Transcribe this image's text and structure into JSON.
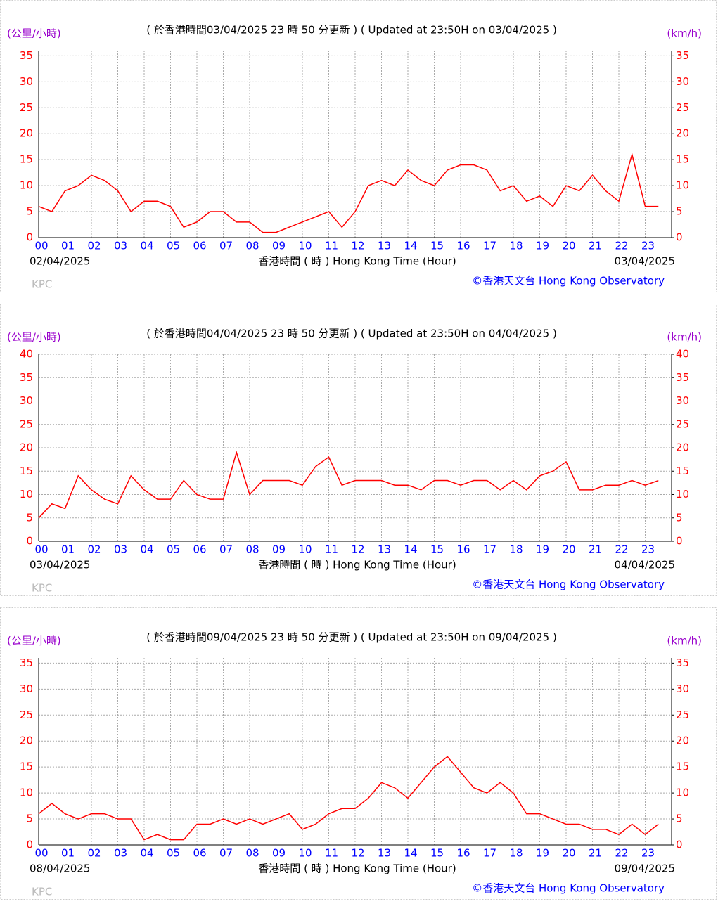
{
  "chart_data": [
    {
      "type": "line",
      "title": "( 於香港時間03/04/2025 23 時 50 分更新 ) ( Updated at 23:50H on 03/04/2025 )",
      "y_label": "(公里/小時)",
      "y2_label": "(km/h)",
      "x_label": "香港時間 ( 時 ) Hong Kong Time (Hour)",
      "start_date": "02/04/2025",
      "end_date": "03/04/2025",
      "footer": "KPC",
      "credit": "©香港天文台 Hong Kong Observatory",
      "grid": true,
      "x": [
        0,
        0.5,
        1,
        1.5,
        2,
        2.5,
        3,
        3.5,
        4,
        4.5,
        5,
        5.5,
        6,
        6.5,
        7,
        7.5,
        8,
        8.5,
        9,
        9.5,
        10,
        10.5,
        11,
        11.5,
        12,
        12.5,
        13,
        13.5,
        14,
        14.5,
        15,
        15.5,
        16,
        16.5,
        17,
        17.5,
        18,
        18.5,
        19,
        19.5,
        20,
        20.5,
        21,
        21.5,
        22,
        22.5,
        23,
        23.5
      ],
      "series": [
        {
          "color": "#ff0000",
          "values": [
            6,
            5,
            9,
            10,
            12,
            11,
            9,
            5,
            7,
            7,
            6,
            2,
            3,
            5,
            5,
            3,
            3,
            1,
            1,
            2,
            3,
            4,
            5,
            2,
            5,
            10,
            11,
            10,
            13,
            11,
            10,
            13,
            14,
            14,
            13,
            9,
            10,
            7,
            8,
            6,
            10,
            9,
            12,
            9,
            7,
            16,
            6,
            6
          ]
        }
      ],
      "xlim": [
        0,
        24
      ],
      "xticks": [
        {
          "value": 0,
          "label": "00"
        },
        {
          "value": 1,
          "label": "01"
        },
        {
          "value": 2,
          "label": "02"
        },
        {
          "value": 3,
          "label": "03"
        },
        {
          "value": 4,
          "label": "04"
        },
        {
          "value": 5,
          "label": "05"
        },
        {
          "value": 6,
          "label": "06"
        },
        {
          "value": 7,
          "label": "07"
        },
        {
          "value": 8,
          "label": "08"
        },
        {
          "value": 9,
          "label": "09"
        },
        10,
        11,
        12,
        13,
        14,
        15,
        16,
        17,
        18,
        19,
        20,
        21,
        22,
        23
      ],
      "ylim": [
        0,
        36
      ],
      "yticks": [
        0,
        5,
        10,
        15,
        20,
        25,
        30,
        35
      ],
      "y2lim": [
        0,
        36
      ],
      "y2ticks": [
        0,
        5,
        10,
        15,
        20,
        25,
        30,
        35
      ]
    },
    {
      "type": "line",
      "title": "( 於香港時間04/04/2025 23 時 50 分更新 ) ( Updated at 23:50H on 04/04/2025 )",
      "y_label": "(公里/小時)",
      "y2_label": "(km/h)",
      "x_label": "香港時間 ( 時 ) Hong Kong Time (Hour)",
      "start_date": "03/04/2025",
      "end_date": "04/04/2025",
      "footer": "KPC",
      "credit": "©香港天文台 Hong Kong Observatory",
      "grid": true,
      "x": [
        0,
        0.5,
        1,
        1.5,
        2,
        2.5,
        3,
        3.5,
        4,
        4.5,
        5,
        5.5,
        6,
        6.5,
        7,
        7.5,
        8,
        8.5,
        9,
        9.5,
        10,
        10.5,
        11,
        11.5,
        12,
        12.5,
        13,
        13.5,
        14,
        14.5,
        15,
        15.5,
        16,
        16.5,
        17,
        17.5,
        18,
        18.5,
        19,
        19.5,
        20,
        20.5,
        21,
        21.5,
        22,
        22.5,
        23,
        23.5
      ],
      "series": [
        {
          "color": "#ff0000",
          "values": [
            5,
            8,
            7,
            14,
            11,
            9,
            8,
            14,
            11,
            9,
            9,
            13,
            10,
            9,
            9,
            19,
            10,
            13,
            13,
            13,
            12,
            16,
            18,
            12,
            13,
            13,
            13,
            12,
            12,
            11,
            13,
            13,
            12,
            13,
            13,
            11,
            13,
            11,
            14,
            15,
            17,
            11,
            11,
            12,
            12,
            13,
            12,
            13
          ]
        }
      ],
      "xlim": [
        0,
        24
      ],
      "xticks": [
        {
          "value": 0,
          "label": "00"
        },
        {
          "value": 1,
          "label": "01"
        },
        {
          "value": 2,
          "label": "02"
        },
        {
          "value": 3,
          "label": "03"
        },
        {
          "value": 4,
          "label": "04"
        },
        {
          "value": 5,
          "label": "05"
        },
        {
          "value": 6,
          "label": "06"
        },
        {
          "value": 7,
          "label": "07"
        },
        {
          "value": 8,
          "label": "08"
        },
        {
          "value": 9,
          "label": "09"
        },
        10,
        11,
        12,
        13,
        14,
        15,
        16,
        17,
        18,
        19,
        20,
        21,
        22,
        23
      ],
      "ylim": [
        0,
        40
      ],
      "yticks": [
        0,
        5,
        10,
        15,
        20,
        25,
        30,
        35,
        40
      ],
      "y2lim": [
        0,
        40
      ],
      "y2ticks": [
        0,
        5,
        10,
        15,
        20,
        25,
        30,
        35,
        40
      ]
    },
    {
      "type": "line",
      "title": "( 於香港時間09/04/2025 23 時 50 分更新 ) ( Updated at 23:50H on 09/04/2025 )",
      "y_label": "(公里/小時)",
      "y2_label": "(km/h)",
      "x_label": "香港時間 ( 時 ) Hong Kong Time (Hour)",
      "start_date": "08/04/2025",
      "end_date": "09/04/2025",
      "footer": "KPC",
      "credit": "©香港天文台 Hong Kong Observatory",
      "grid": true,
      "x": [
        0,
        0.5,
        1,
        1.5,
        2,
        2.5,
        3,
        3.5,
        4,
        4.5,
        5,
        5.5,
        6,
        6.5,
        7,
        7.5,
        8,
        8.5,
        9,
        9.5,
        10,
        10.5,
        11,
        11.5,
        12,
        12.5,
        13,
        13.5,
        14,
        14.5,
        15,
        15.5,
        16,
        16.5,
        17,
        17.5,
        18,
        18.5,
        19,
        19.5,
        20,
        20.5,
        21,
        21.5,
        22,
        22.5,
        23,
        23.5
      ],
      "series": [
        {
          "color": "#ff0000",
          "values": [
            6,
            8,
            6,
            5,
            6,
            6,
            5,
            5,
            1,
            2,
            1,
            1,
            4,
            4,
            5,
            4,
            5,
            4,
            5,
            6,
            3,
            4,
            6,
            7,
            7,
            9,
            12,
            11,
            9,
            12,
            15,
            17,
            14,
            11,
            10,
            12,
            10,
            6,
            6,
            5,
            4,
            4,
            3,
            3,
            2,
            4,
            2,
            4
          ]
        }
      ],
      "xlim": [
        0,
        24
      ],
      "xticks": [
        {
          "value": 0,
          "label": "00"
        },
        {
          "value": 1,
          "label": "01"
        },
        {
          "value": 2,
          "label": "02"
        },
        {
          "value": 3,
          "label": "03"
        },
        {
          "value": 4,
          "label": "04"
        },
        {
          "value": 5,
          "label": "05"
        },
        {
          "value": 6,
          "label": "06"
        },
        {
          "value": 7,
          "label": "07"
        },
        {
          "value": 8,
          "label": "08"
        },
        {
          "value": 9,
          "label": "09"
        },
        10,
        11,
        12,
        13,
        14,
        15,
        16,
        17,
        18,
        19,
        20,
        21,
        22,
        23
      ],
      "ylim": [
        0,
        36
      ],
      "yticks": [
        0,
        5,
        10,
        15,
        20,
        25,
        30,
        35
      ],
      "y2lim": [
        0,
        36
      ],
      "y2ticks": [
        0,
        5,
        10,
        15,
        20,
        25,
        30,
        35
      ]
    }
  ]
}
